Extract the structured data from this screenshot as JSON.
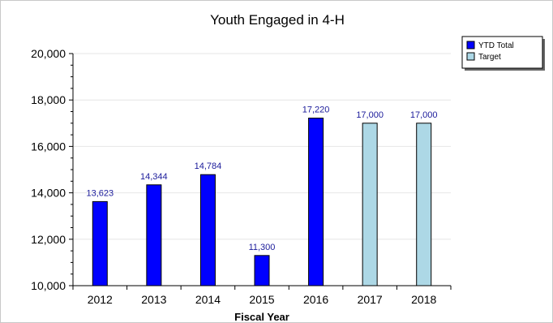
{
  "chart_data": {
    "type": "bar",
    "title": "Youth Engaged in 4-H",
    "xlabel": "Fiscal Year",
    "ylabel": "",
    "ylim": [
      10000,
      20000
    ],
    "yticks": [
      10000,
      12000,
      14000,
      16000,
      18000,
      20000
    ],
    "ytick_labels": [
      "10,000",
      "12,000",
      "14,000",
      "16,000",
      "18,000",
      "20,000"
    ],
    "categories": [
      "2012",
      "2013",
      "2014",
      "2015",
      "2016",
      "2017",
      "2018"
    ],
    "series": [
      {
        "name": "YTD Total",
        "color": "#0000ff",
        "values": [
          13623,
          14344,
          14784,
          11300,
          17220,
          null,
          null
        ],
        "labels": [
          "13,623",
          "14,344",
          "14,784",
          "11,300",
          "17,220",
          "",
          ""
        ]
      },
      {
        "name": "Target",
        "color": "#add8e6",
        "values": [
          null,
          null,
          null,
          null,
          null,
          17000,
          17000
        ],
        "labels": [
          "",
          "",
          "",
          "",
          "",
          "17,000",
          "17,000"
        ]
      }
    ],
    "grid": true,
    "legend_position": "top-right"
  }
}
